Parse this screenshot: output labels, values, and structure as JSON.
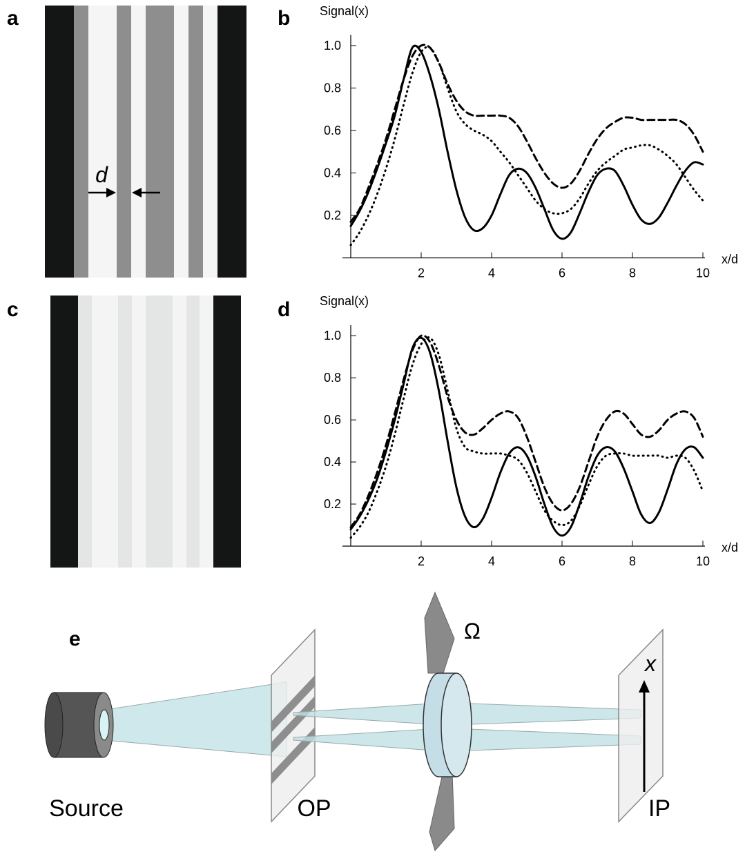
{
  "panels": {
    "a": "a",
    "b": "b",
    "c": "c",
    "d": "d",
    "e": "e"
  },
  "figure_a": {
    "d_label": "d"
  },
  "figure_e": {
    "omega": "Ω",
    "x_label": "x",
    "source": "Source",
    "op": "OP",
    "ip": "IP"
  },
  "chart_data": [
    {
      "type": "line",
      "y_label": "Signal(x)",
      "x_label": "x/d",
      "x": [
        0,
        0.25,
        0.5,
        0.75,
        1,
        1.25,
        1.5,
        1.75,
        2,
        2.25,
        2.5,
        2.75,
        3,
        3.25,
        3.5,
        3.75,
        4,
        4.25,
        4.5,
        4.75,
        5,
        5.25,
        5.5,
        5.75,
        6,
        6.25,
        6.5,
        6.75,
        7,
        7.25,
        7.5,
        7.75,
        8,
        8.25,
        8.5,
        8.75,
        9,
        9.25,
        9.5,
        9.75,
        10
      ],
      "xlim": [
        0,
        10
      ],
      "ylim": [
        0,
        1.05
      ],
      "xticks": [
        2,
        4,
        6,
        8,
        10
      ],
      "yticks": [
        0.2,
        0.4,
        0.6,
        0.8,
        {
          "value": 1,
          "label": "1.0"
        }
      ],
      "series": [
        {
          "color": "#000000",
          "style": "solid",
          "values": [
            0.15,
            0.22,
            0.31,
            0.42,
            0.54,
            0.67,
            0.84,
            0.99,
            0.97,
            0.86,
            0.7,
            0.5,
            0.32,
            0.19,
            0.13,
            0.14,
            0.2,
            0.3,
            0.39,
            0.42,
            0.4,
            0.33,
            0.23,
            0.13,
            0.09,
            0.12,
            0.21,
            0.31,
            0.39,
            0.42,
            0.41,
            0.34,
            0.25,
            0.18,
            0.16,
            0.19,
            0.26,
            0.34,
            0.41,
            0.45,
            0.44
          ]
        },
        {
          "color": "#000000",
          "style": "dashed",
          "values": [
            0.17,
            0.23,
            0.33,
            0.44,
            0.56,
            0.7,
            0.84,
            0.95,
            1.0,
            0.99,
            0.92,
            0.82,
            0.74,
            0.69,
            0.67,
            0.67,
            0.67,
            0.67,
            0.66,
            0.62,
            0.55,
            0.47,
            0.4,
            0.35,
            0.33,
            0.35,
            0.41,
            0.49,
            0.56,
            0.61,
            0.64,
            0.66,
            0.66,
            0.65,
            0.65,
            0.65,
            0.65,
            0.65,
            0.63,
            0.58,
            0.5
          ]
        },
        {
          "color": "#000000",
          "style": "dotted",
          "values": [
            0.06,
            0.12,
            0.2,
            0.3,
            0.42,
            0.56,
            0.72,
            0.87,
            0.97,
            0.99,
            0.92,
            0.8,
            0.69,
            0.63,
            0.6,
            0.58,
            0.55,
            0.5,
            0.45,
            0.39,
            0.33,
            0.27,
            0.23,
            0.21,
            0.21,
            0.23,
            0.28,
            0.35,
            0.41,
            0.45,
            0.48,
            0.51,
            0.52,
            0.53,
            0.53,
            0.51,
            0.48,
            0.44,
            0.38,
            0.32,
            0.27
          ]
        }
      ]
    },
    {
      "type": "line",
      "y_label": "Signal(x)",
      "x_label": "x/d",
      "x": [
        0,
        0.25,
        0.5,
        0.75,
        1,
        1.25,
        1.5,
        1.75,
        2,
        2.25,
        2.5,
        2.75,
        3,
        3.25,
        3.5,
        3.75,
        4,
        4.25,
        4.5,
        4.75,
        5,
        5.25,
        5.5,
        5.75,
        6,
        6.25,
        6.5,
        6.75,
        7,
        7.25,
        7.5,
        7.75,
        8,
        8.25,
        8.5,
        8.75,
        9,
        9.25,
        9.5,
        9.75,
        10
      ],
      "xlim": [
        0,
        10
      ],
      "ylim": [
        0,
        1.05
      ],
      "xticks": [
        2,
        4,
        6,
        8,
        10
      ],
      "yticks": [
        0.2,
        0.4,
        0.6,
        0.8,
        {
          "value": 1,
          "label": "1.0"
        }
      ],
      "series": [
        {
          "color": "#000000",
          "style": "solid",
          "values": [
            0.08,
            0.14,
            0.22,
            0.32,
            0.45,
            0.6,
            0.77,
            0.94,
            0.99,
            0.92,
            0.74,
            0.5,
            0.28,
            0.14,
            0.09,
            0.13,
            0.23,
            0.35,
            0.44,
            0.47,
            0.43,
            0.33,
            0.2,
            0.09,
            0.05,
            0.09,
            0.2,
            0.33,
            0.43,
            0.47,
            0.45,
            0.37,
            0.26,
            0.15,
            0.11,
            0.16,
            0.27,
            0.39,
            0.46,
            0.47,
            0.42
          ]
        },
        {
          "color": "#000000",
          "style": "dashed",
          "values": [
            0.09,
            0.15,
            0.24,
            0.35,
            0.48,
            0.63,
            0.79,
            0.93,
            1.0,
            0.97,
            0.86,
            0.71,
            0.6,
            0.54,
            0.53,
            0.56,
            0.6,
            0.63,
            0.64,
            0.61,
            0.52,
            0.4,
            0.28,
            0.2,
            0.17,
            0.2,
            0.28,
            0.4,
            0.52,
            0.6,
            0.64,
            0.63,
            0.58,
            0.53,
            0.52,
            0.55,
            0.6,
            0.63,
            0.64,
            0.61,
            0.52
          ]
        },
        {
          "color": "#000000",
          "style": "dotted",
          "values": [
            0.04,
            0.09,
            0.16,
            0.26,
            0.38,
            0.53,
            0.7,
            0.86,
            0.96,
            0.99,
            0.91,
            0.74,
            0.56,
            0.47,
            0.45,
            0.44,
            0.44,
            0.44,
            0.43,
            0.41,
            0.35,
            0.26,
            0.17,
            0.12,
            0.1,
            0.12,
            0.19,
            0.29,
            0.38,
            0.43,
            0.44,
            0.44,
            0.43,
            0.43,
            0.43,
            0.43,
            0.42,
            0.43,
            0.42,
            0.36,
            0.26
          ]
        }
      ]
    }
  ]
}
